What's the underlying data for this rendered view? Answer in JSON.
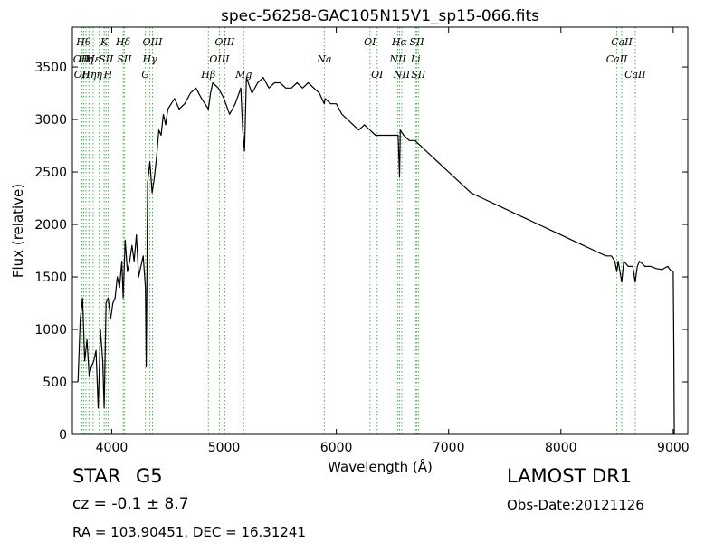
{
  "chart_data": {
    "type": "line",
    "title": "spec-56258-GAC105N15V1_sp15-066.fits",
    "xlabel": "Wavelength (Å)",
    "ylabel": "Flux (relative)",
    "xlim": [
      3650,
      9130
    ],
    "ylim": [
      0,
      3880
    ],
    "xticks": [
      4000,
      5000,
      6000,
      7000,
      8000,
      9000
    ],
    "yticks": [
      0,
      500,
      1000,
      1500,
      2000,
      2500,
      3000,
      3500
    ],
    "grid": false,
    "line_color": "#000000",
    "marker_color": "#4caf50",
    "series": [
      {
        "x": [
          3700,
          3720,
          3740,
          3760,
          3780,
          3800,
          3820,
          3840,
          3860,
          3880,
          3900,
          3920,
          3933,
          3950,
          3968,
          3990,
          4010,
          4030,
          4050,
          4070,
          4090,
          4102,
          4120,
          4140,
          4160,
          4180,
          4200,
          4220,
          4240,
          4260,
          4280,
          4300,
          4308,
          4320,
          4340,
          4360,
          4380,
          4400,
          4420,
          4440,
          4460,
          4480,
          4500,
          4530,
          4560,
          4600,
          4650,
          4700,
          4750,
          4800,
          4861,
          4880,
          4900,
          4950,
          5000,
          5050,
          5100,
          5150,
          5167,
          5183,
          5200,
          5250,
          5300,
          5350,
          5400,
          5450,
          5500,
          5550,
          5600,
          5650,
          5700,
          5750,
          5800,
          5850,
          5893,
          5900,
          5950,
          6000,
          6050,
          6100,
          6150,
          6200,
          6250,
          6300,
          6350,
          6400,
          6450,
          6500,
          6550,
          6563,
          6570,
          6600,
          6650,
          6700,
          6750,
          6800,
          6850,
          6900,
          6950,
          7000,
          7100,
          7200,
          7300,
          7400,
          7500,
          7600,
          7700,
          7800,
          7900,
          8000,
          8100,
          8200,
          8300,
          8400,
          8450,
          8480,
          8498,
          8510,
          8542,
          8560,
          8600,
          8640,
          8662,
          8680,
          8700,
          8750,
          8800,
          8850,
          8900,
          8950,
          8980,
          9000,
          9005,
          9010
        ],
        "y": [
          500,
          1100,
          1300,
          700,
          900,
          550,
          650,
          700,
          800,
          250,
          1000,
          700,
          250,
          1250,
          1300,
          1100,
          1250,
          1300,
          1500,
          1400,
          1650,
          1300,
          1850,
          1550,
          1650,
          1800,
          1650,
          1900,
          1500,
          1600,
          1700,
          1400,
          650,
          2400,
          2600,
          2300,
          2450,
          2650,
          2900,
          2850,
          3050,
          2950,
          3100,
          3150,
          3200,
          3100,
          3150,
          3250,
          3300,
          3200,
          3100,
          3250,
          3350,
          3300,
          3200,
          3050,
          3150,
          3300,
          2900,
          2700,
          3400,
          3250,
          3350,
          3400,
          3300,
          3350,
          3350,
          3300,
          3300,
          3350,
          3300,
          3350,
          3300,
          3250,
          3150,
          3200,
          3150,
          3150,
          3050,
          3000,
          2950,
          2900,
          2950,
          2900,
          2850,
          2850,
          2850,
          2850,
          2850,
          2450,
          2900,
          2850,
          2800,
          2800,
          2750,
          2700,
          2650,
          2600,
          2550,
          2500,
          2400,
          2300,
          2250,
          2200,
          2150,
          2100,
          2050,
          2000,
          1950,
          1900,
          1850,
          1800,
          1750,
          1700,
          1700,
          1650,
          1550,
          1650,
          1450,
          1650,
          1600,
          1600,
          1450,
          1600,
          1650,
          1600,
          1600,
          1580,
          1570,
          1600,
          1560,
          1550,
          900,
          0
        ]
      }
    ],
    "line_markers": [
      {
        "x": 3727,
        "label": "OII",
        "row": 1
      },
      {
        "x": 3736,
        "label": "OII",
        "row": 2
      },
      {
        "x": 3750,
        "label": "Hθ",
        "row": 0
      },
      {
        "x": 3771,
        "label": "Hη",
        "row": 1
      },
      {
        "x": 3798,
        "label": "Hη",
        "row": 2
      },
      {
        "x": 3835,
        "label": "Hε",
        "row": 1
      },
      {
        "x": 3889,
        "label": "η",
        "row": 2
      },
      {
        "x": 3933,
        "label": "K",
        "row": 0
      },
      {
        "x": 3950,
        "label": "SII",
        "row": 1
      },
      {
        "x": 3968,
        "label": "H",
        "row": 2
      },
      {
        "x": 4102,
        "label": "Hδ",
        "row": 0
      },
      {
        "x": 4112,
        "label": "SII",
        "row": 1
      },
      {
        "x": 4300,
        "label": "G",
        "row": 2
      },
      {
        "x": 4340,
        "label": "Hγ",
        "row": 1
      },
      {
        "x": 4363,
        "label": "OIII",
        "row": 0
      },
      {
        "x": 4861,
        "label": "Hβ",
        "row": 2
      },
      {
        "x": 4959,
        "label": "OIII",
        "row": 1
      },
      {
        "x": 5007,
        "label": "OIII",
        "row": 0
      },
      {
        "x": 5175,
        "label": "Mg",
        "row": 2
      },
      {
        "x": 5893,
        "label": "Na",
        "row": 1
      },
      {
        "x": 6300,
        "label": "OI",
        "row": 0
      },
      {
        "x": 6364,
        "label": "OI",
        "row": 2
      },
      {
        "x": 6548,
        "label": "NII",
        "row": 1
      },
      {
        "x": 6563,
        "label": "Hα",
        "row": 0
      },
      {
        "x": 6583,
        "label": "NII",
        "row": 2
      },
      {
        "x": 6707,
        "label": "Li",
        "row": 1
      },
      {
        "x": 6717,
        "label": "SII",
        "row": 0
      },
      {
        "x": 6731,
        "label": "SII",
        "row": 2
      },
      {
        "x": 8498,
        "label": "CaII",
        "row": 1
      },
      {
        "x": 8542,
        "label": "CaII",
        "row": 0
      },
      {
        "x": 8662,
        "label": "CaII",
        "row": 2
      }
    ]
  },
  "info": {
    "class": "STAR",
    "subclass": "G5",
    "cz": "cz = -0.1  ± 8.7",
    "radec": "RA = 103.90451, DEC = 16.31241",
    "survey": "LAMOST DR1",
    "obsdate": "Obs-Date:20121126"
  }
}
